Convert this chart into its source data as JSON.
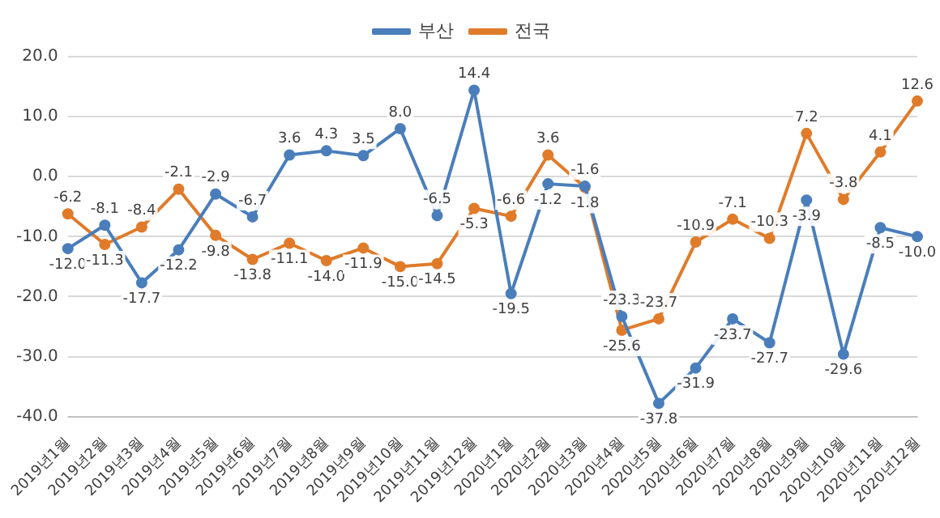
{
  "chart_data": {
    "type": "line",
    "categories": [
      "2019년1월",
      "2019년2월",
      "2019년3월",
      "2019년4월",
      "2019년5월",
      "2019년6월",
      "2019년7월",
      "2019년8월",
      "2019년9월",
      "2019년10월",
      "2019년11월",
      "2019년12월",
      "2020년1월",
      "2020년2월",
      "2020년3월",
      "2020년4월",
      "2020년5월",
      "2020년6월",
      "2020년7월",
      "2020년8월",
      "2020년9월",
      "2020년10월",
      "2020년11월",
      "2020년12월"
    ],
    "series": [
      {
        "name": "부산",
        "color": "#4a7ebb",
        "values": [
          -12.0,
          -8.1,
          -17.7,
          -12.2,
          -2.9,
          -6.7,
          3.6,
          4.3,
          3.5,
          8.0,
          -6.5,
          14.4,
          -19.5,
          -1.2,
          -1.6,
          -23.3,
          -37.8,
          -31.9,
          -23.7,
          -27.7,
          -3.9,
          -29.6,
          -8.5,
          -10.0
        ],
        "value_labels": [
          "-12.0",
          "-8.1",
          "-17.7",
          "-12.2",
          "-2.9",
          "-6.7",
          "3.6",
          "4.3",
          "3.5",
          "8.0",
          "-6.5",
          "14.4",
          "-19.5",
          "-1.2",
          "-1.6",
          "-23.3",
          "-37.8",
          "-31.9",
          "-23.7",
          "-27.7",
          "-3.9",
          "-29.6",
          "-8.5",
          "-10.0"
        ]
      },
      {
        "name": "전국",
        "color": "#e07b2a",
        "values": [
          -6.2,
          -11.3,
          -8.4,
          -2.1,
          -9.8,
          -13.8,
          -11.1,
          -14.0,
          -11.9,
          -15.0,
          -14.5,
          -5.3,
          -6.6,
          3.6,
          -1.8,
          -25.6,
          -23.7,
          -10.9,
          -7.1,
          -10.3,
          7.2,
          -3.8,
          4.1,
          12.6
        ],
        "value_labels": [
          "-6.2",
          "-11.3",
          "-8.4",
          "-2.1",
          "-9.8",
          "-13.8",
          "-11.1",
          "-14.0",
          "-11.9",
          "-15.0",
          "-14.5",
          "-5.3",
          "-6.6",
          "3.6",
          "-1.8",
          "-25.6",
          "-23.7",
          "-10.9",
          "-7.1",
          "-10.3",
          "7.2",
          "-3.8",
          "4.1",
          "12.6"
        ]
      }
    ],
    "ylim": [
      -40,
      20
    ],
    "yticks": [
      {
        "value": -40,
        "label": "-40.0"
      },
      {
        "value": -30,
        "label": "-30.0"
      },
      {
        "value": -20,
        "label": "-20.0"
      },
      {
        "value": -10,
        "label": "-10.0"
      },
      {
        "value": 0,
        "label": "0.0"
      },
      {
        "value": 10,
        "label": "10.0"
      },
      {
        "value": 20,
        "label": "20.0"
      }
    ],
    "grid": "y",
    "legend": "top",
    "marker": "circle",
    "line_style": "solid"
  }
}
